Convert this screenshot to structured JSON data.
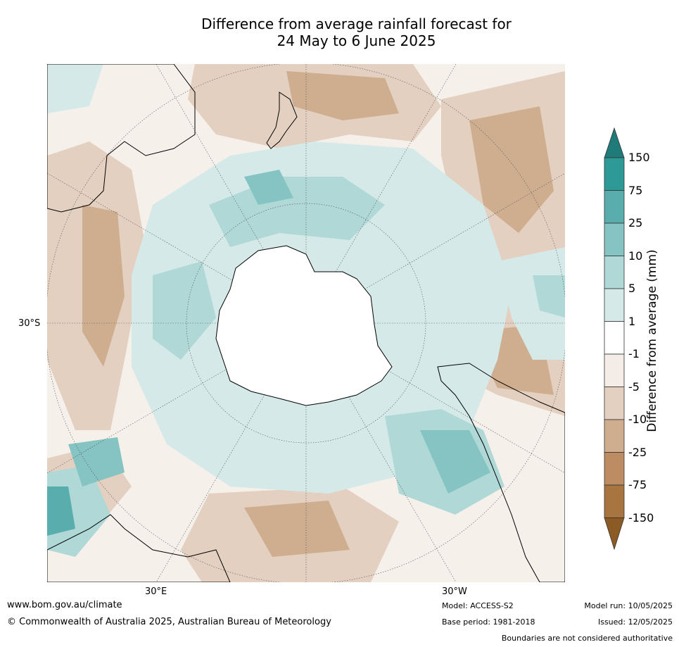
{
  "title_line1": "Difference from average rainfall forecast for",
  "title_line2": "24 May to 6 June 2025",
  "map": {
    "lat_label": "30°S",
    "lon_labels": [
      "30°E",
      "30°W"
    ]
  },
  "colorbar": {
    "title": "Difference from average (mm)",
    "ticks": [
      "150",
      "75",
      "25",
      "10",
      "5",
      "1",
      "-1",
      "-5",
      "-10",
      "-25",
      "-75",
      "-150"
    ],
    "colors": {
      "gt150": "#1f7a7a",
      "75_150": "#2e9a98",
      "25_75": "#5aadad",
      "10_25": "#85c4c2",
      "5_10": "#afd8d6",
      "1_5": "#d5eae8",
      "m1_1": "#ffffff",
      "m5_m1": "#f4ede7",
      "m10_m5": "#e3d0c0",
      "m25_m10": "#cfae90",
      "m75_m25": "#bd8c62",
      "m150_m75": "#a87440",
      "lt_m150": "#8c5a24"
    }
  },
  "footer": {
    "url": "www.bom.gov.au/climate",
    "copyright": "© Commonwealth of Australia 2025, Australian Bureau of Meteorology",
    "model": "Model: ACCESS-S2",
    "base_period": "Base period: 1981-2018",
    "model_run": "Model run: 10/05/2025",
    "issued": "Issued: 12/05/2025",
    "disclaimer": "Boundaries are not considered authoritative"
  }
}
